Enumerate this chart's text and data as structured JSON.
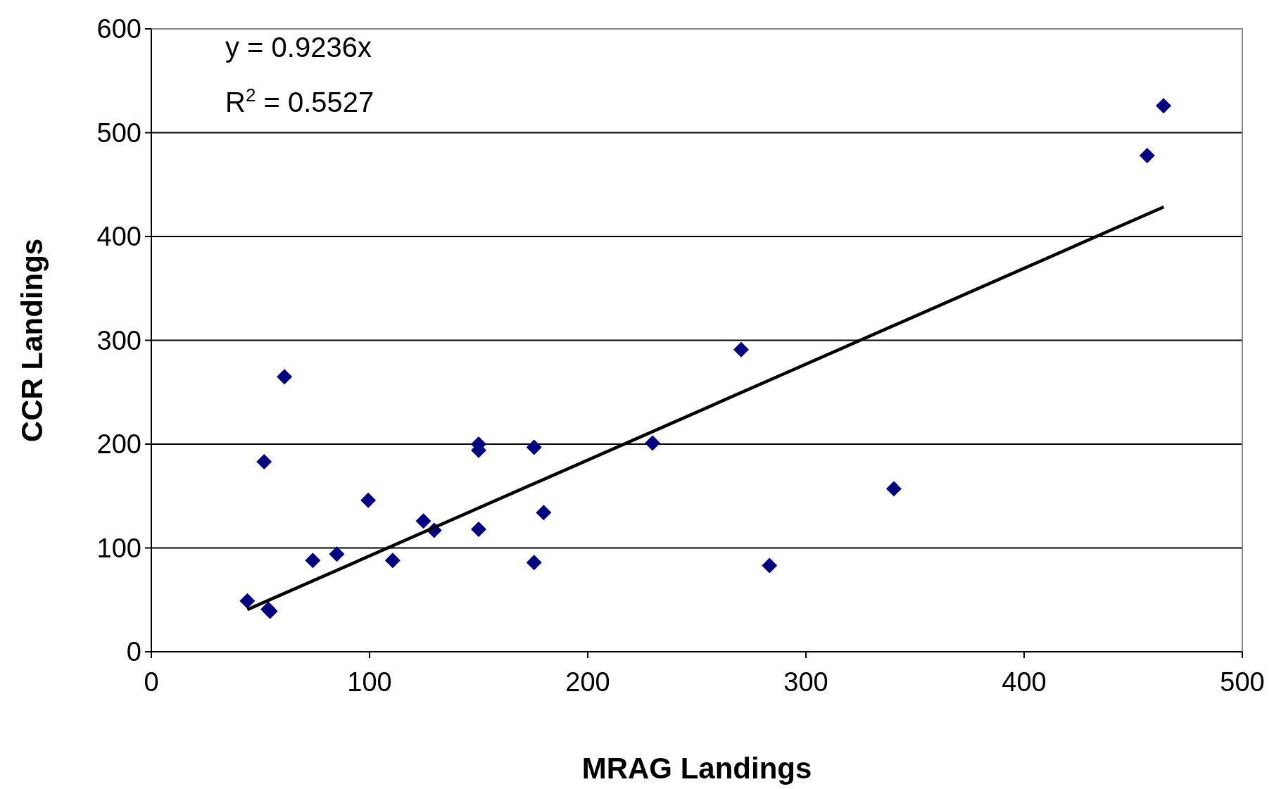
{
  "chart_data": {
    "type": "scatter",
    "xlabel": "MRAG Landings",
    "ylabel": "CCR Landings",
    "xlim": [
      0,
      500
    ],
    "xticks": [
      0,
      100,
      200,
      300,
      400,
      500
    ],
    "ylim": [
      0,
      600
    ],
    "yticks": [
      0,
      100,
      200,
      300,
      400,
      500,
      600
    ],
    "grid": "y",
    "annotations": [
      "y = 0.9236x",
      "R$^{2}$ = 0.5527"
    ],
    "series": [
      {
        "marker": "diamond",
        "color": "#000080",
        "x": [
          44,
          53.6,
          54.4,
          51.7,
          61,
          74,
          85,
          99.4,
          110.6,
          124.7,
          129.6,
          150,
          150,
          150,
          175.4,
          175.4,
          179.8,
          229.7,
          270.3,
          283.3,
          340.3,
          456.4,
          463.9
        ],
        "values": [
          49,
          41,
          39,
          183,
          265,
          88,
          94,
          146,
          88,
          126,
          117,
          200,
          194,
          118,
          197,
          86,
          134,
          201,
          291,
          83,
          157,
          478,
          526
        ]
      },
      {
        "type": "line",
        "color": "#000000",
        "line_style": "solid",
        "x": [
          44,
          464
        ],
        "values": [
          40.6,
          428.5
        ]
      }
    ]
  }
}
